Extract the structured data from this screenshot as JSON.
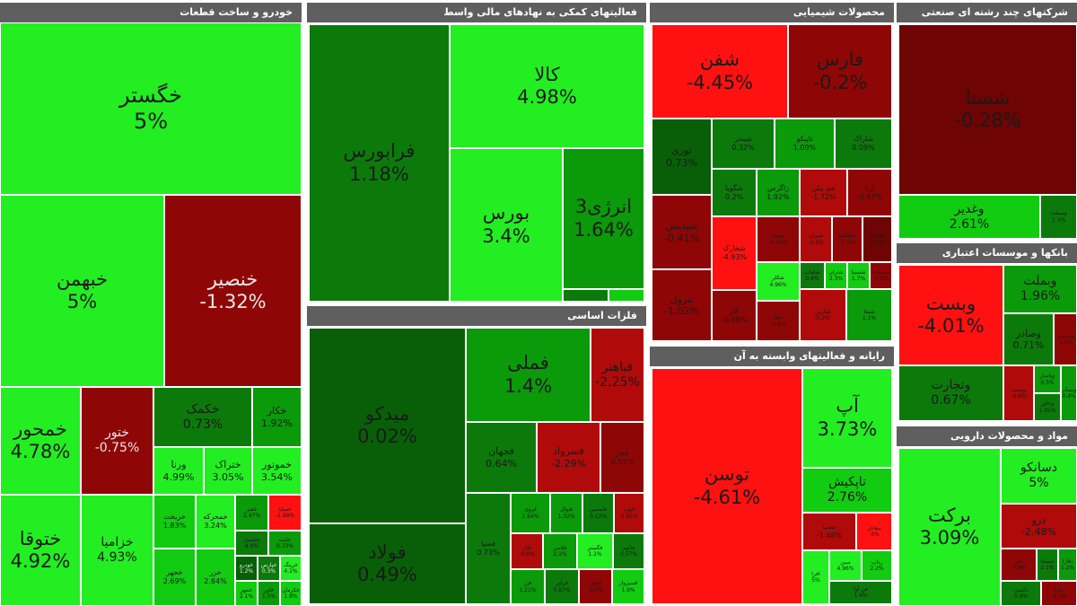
{
  "sectors": {
    "auto": {
      "title": "خودرو و ساخت قطعات",
      "cells": [
        {
          "name": "خگستر",
          "change": "5%"
        },
        {
          "name": "خبهمن",
          "change": "5%"
        },
        {
          "name": "خنصیر",
          "change": "-1.32%"
        },
        {
          "name": "خمحور",
          "change": "4.78%"
        },
        {
          "name": "ختور",
          "change": "-0.75%"
        },
        {
          "name": "خکمک",
          "change": "0.73%"
        },
        {
          "name": "خکار",
          "change": "1.92%"
        },
        {
          "name": "ورنا",
          "change": "4.99%"
        },
        {
          "name": "ختراک",
          "change": "3.05%"
        },
        {
          "name": "خموتور",
          "change": "3.54%"
        },
        {
          "name": "ختوقا",
          "change": "4.92%"
        },
        {
          "name": "خزامیا",
          "change": "4.93%"
        },
        {
          "name": "خریخت",
          "change": "1.83%"
        },
        {
          "name": "خمحرکه",
          "change": "3.24%"
        },
        {
          "name": "خفنر",
          "change": "2.47%"
        },
        {
          "name": "خساپا",
          "change": "-1.98%"
        },
        {
          "name": "خجهر",
          "change": "2.69%"
        },
        {
          "name": "خزر",
          "change": "2.84%"
        },
        {
          "name": "خشصل",
          "change": "4.9%"
        },
        {
          "name": "خلنت",
          "change": "0.73%"
        },
        {
          "name": "خودرو",
          "change": "1.2%"
        },
        {
          "name": "خپارس",
          "change": "0.3%"
        },
        {
          "name": "خرینگ",
          "change": "4.1%"
        },
        {
          "name": "خمهر",
          "change": "2.1%"
        },
        {
          "name": "خاور",
          "change": "1.5%"
        },
        {
          "name": "خکرمان",
          "change": "1.8%"
        }
      ]
    },
    "finance": {
      "title": "فعالیتهای کمکی به نهادهای مالی واسط",
      "cells": [
        {
          "name": "فرابورس",
          "change": "1.18%"
        },
        {
          "name": "کالا",
          "change": "4.98%"
        },
        {
          "name": "بورس",
          "change": "3.4%"
        },
        {
          "name": "انرژی3",
          "change": "1.64%"
        }
      ]
    },
    "metals": {
      "title": "فلزات اساسی",
      "cells": [
        {
          "name": "میدکو",
          "change": "0.02%"
        },
        {
          "name": "فولاد",
          "change": "0.49%"
        },
        {
          "name": "فملی",
          "change": "1.4%"
        },
        {
          "name": "فباهنر",
          "change": "-2.25%"
        },
        {
          "name": "فجهان",
          "change": "0.64%"
        },
        {
          "name": "فسرواد",
          "change": "-2.29%"
        },
        {
          "name": "فجر",
          "change": "0.52%"
        },
        {
          "name": "فسپا",
          "change": "0.73%"
        },
        {
          "name": "فروی",
          "change": "1.64%"
        },
        {
          "name": "فنوال",
          "change": "1.32%"
        },
        {
          "name": "فاسمین",
          "change": "0.12%"
        },
        {
          "name": "فنورد",
          "change": "0.45%"
        },
        {
          "name": "فاذر",
          "change": "-0.8%"
        },
        {
          "name": "فلامی",
          "change": "2.1%"
        },
        {
          "name": "فگستر",
          "change": "1.1%"
        },
        {
          "name": "فالوم",
          "change": "0.57%"
        },
        {
          "name": "فزر",
          "change": "1.21%"
        },
        {
          "name": "فرآور",
          "change": "0.87%"
        },
        {
          "name": "فخوز",
          "change": "-0.4%"
        },
        {
          "name": "فسبزوار",
          "change": "1.9%"
        }
      ]
    },
    "chem": {
      "title": "محصولات شیمیایی",
      "cells": [
        {
          "name": "شفن",
          "change": "-4.45%"
        },
        {
          "name": "فارس",
          "change": "-0.2%"
        },
        {
          "name": "نوری",
          "change": "0.73%"
        },
        {
          "name": "شپدیس",
          "change": "-0.41%"
        },
        {
          "name": "پترول",
          "change": "-1.02%"
        },
        {
          "name": "تاپیکو",
          "change": "1.09%"
        },
        {
          "name": "شبندر",
          "change": "0.32%"
        },
        {
          "name": "شاراک",
          "change": "0.09%"
        },
        {
          "name": "شگویا",
          "change": "0.2%"
        },
        {
          "name": "زاگرس",
          "change": "1.92%"
        },
        {
          "name": "جم پیلن",
          "change": "-1.72%"
        },
        {
          "name": "آریا",
          "change": "-0.47%"
        },
        {
          "name": "شخارک",
          "change": "-4.93%"
        },
        {
          "name": "شکلر",
          "change": "4.96%"
        },
        {
          "name": "کاز",
          "change": "-0.89%"
        },
        {
          "name": "وپترو",
          "change": "-0.62%"
        },
        {
          "name": "شیران",
          "change": "-0.5%"
        },
        {
          "name": "شپاکسا",
          "change": "-1.1%"
        },
        {
          "name": "شغدیر",
          "change": "-0.6%"
        },
        {
          "name": "شلعاب",
          "change": "0.4%"
        },
        {
          "name": "شتران",
          "change": "2.3%"
        },
        {
          "name": "شسینا",
          "change": "1.7%"
        },
        {
          "name": "شصدف",
          "change": "-0.9%"
        },
        {
          "name": "شفا",
          "change": "-1.4%"
        },
        {
          "name": "شکربن",
          "change": "0.2%"
        },
        {
          "name": "شملا",
          "change": "1.1%"
        }
      ]
    },
    "multi": {
      "title": "شرکتهای چند رشته ای صنعتی",
      "cells": [
        {
          "name": "شستا",
          "change": "-0.28%"
        },
        {
          "name": "وغدیر",
          "change": "2.61%"
        },
        {
          "name": "وصنعت",
          "change": "1.3%"
        }
      ]
    },
    "banks": {
      "title": "بانکها و موسسات اعتباری",
      "cells": [
        {
          "name": "وبست",
          "change": "-4.01%"
        },
        {
          "name": "وبملت",
          "change": "1.96%"
        },
        {
          "name": "وتجارت",
          "change": "0.67%"
        },
        {
          "name": "وصادر",
          "change": "0.71%"
        },
        {
          "name": "وسامان",
          "change": "-1.2%"
        },
        {
          "name": "وپست",
          "change": "-0.9%"
        },
        {
          "name": "وپاسار",
          "change": "0.5%"
        },
        {
          "name": "وخاور",
          "change": "1.05%"
        },
        {
          "name": "وبصادر",
          "change": "0.4%"
        }
      ]
    },
    "it": {
      "title": "رایانه و فعالیتهای وابسته به آن",
      "cells": [
        {
          "name": "توسن",
          "change": "-4.61%"
        },
        {
          "name": "آپ",
          "change": "3.73%"
        },
        {
          "name": "تاپکیش",
          "change": "2.76%"
        },
        {
          "name": "سپ",
          "change": "-1.46%"
        },
        {
          "name": "مفاخر",
          "change": "-5%"
        },
        {
          "name": "افرا",
          "change": "5%"
        },
        {
          "name": "مبین",
          "change": "4.96%"
        },
        {
          "name": "رتاپ",
          "change": "2.2%"
        },
        {
          "name": "فن آوا",
          "change": "1.4%"
        }
      ]
    },
    "pharma": {
      "title": "مواد و محصولات دارویی",
      "cells": [
        {
          "name": "برکت",
          "change": "3.09%"
        },
        {
          "name": "دسانکو",
          "change": "5%"
        },
        {
          "name": "دزو",
          "change": "-2.48%"
        },
        {
          "name": "دلر",
          "change": "-0.8%"
        },
        {
          "name": "دسبحا",
          "change": "2.1%"
        },
        {
          "name": "دفارا",
          "change": "1.2%"
        },
        {
          "name": "دکیمی",
          "change": "0.9%"
        },
        {
          "name": "داوه",
          "change": "-1.1%"
        }
      ]
    }
  }
}
